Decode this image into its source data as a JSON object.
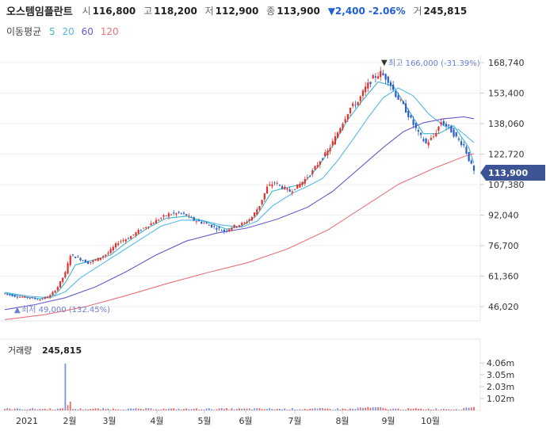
{
  "header": {
    "name": "오스템임플란트",
    "open_label": "시",
    "open": "116,800",
    "high_label": "고",
    "high": "118,200",
    "low_label": "저",
    "low": "112,900",
    "close_label": "종",
    "close": "113,900",
    "change": "▼2,400 -2.06%",
    "volume_label": "거",
    "volume": "245,815"
  },
  "ma_legend": {
    "title": "이동평균",
    "periods": [
      {
        "label": "5",
        "color": "#3ab7c9"
      },
      {
        "label": "20",
        "color": "#55b8ea"
      },
      {
        "label": "60",
        "color": "#6a5acd"
      },
      {
        "label": "120",
        "color": "#e8737a"
      }
    ]
  },
  "scale_type": "Linear",
  "chart_data": {
    "type": "candlestick",
    "y_ticks": [
      "168,740",
      "153,400",
      "138,060",
      "122,720",
      "107,380",
      "92,040",
      "76,700",
      "61,360",
      "46,020"
    ],
    "y_tick_values": [
      168740,
      153400,
      138060,
      122720,
      107380,
      92040,
      76700,
      61360,
      46020
    ],
    "x_ticks": [
      "2021",
      "2월",
      "3월",
      "4월",
      "5월",
      "6월",
      "7월",
      "8월",
      "9월",
      "10월"
    ],
    "current_price": "113,900",
    "high_annotation": "최고 166,000 (-31.39%)",
    "low_annotation": "최저 49,000 (132.45%)",
    "price_path": [
      [
        0,
        52500
      ],
      [
        5,
        51000
      ],
      [
        10,
        50500
      ],
      [
        14,
        49500
      ],
      [
        18,
        51500
      ],
      [
        21,
        56000
      ],
      [
        24,
        63000
      ],
      [
        26,
        72000
      ],
      [
        29,
        70500
      ],
      [
        33,
        68000
      ],
      [
        37,
        70000
      ],
      [
        41,
        73000
      ],
      [
        45,
        78500
      ],
      [
        49,
        80500
      ],
      [
        53,
        84000
      ],
      [
        57,
        87000
      ],
      [
        61,
        90000
      ],
      [
        65,
        92500
      ],
      [
        69,
        93000
      ],
      [
        72,
        92000
      ],
      [
        75,
        89500
      ],
      [
        79,
        88000
      ],
      [
        83,
        86000
      ],
      [
        87,
        84000
      ],
      [
        91,
        86500
      ],
      [
        95,
        88000
      ],
      [
        98,
        91000
      ],
      [
        101,
        97000
      ],
      [
        104,
        106000
      ],
      [
        107,
        108500
      ],
      [
        110,
        106000
      ],
      [
        113,
        104000
      ],
      [
        116,
        106500
      ],
      [
        119,
        110000
      ],
      [
        122,
        114000
      ],
      [
        125,
        119500
      ],
      [
        128,
        124000
      ],
      [
        131,
        131000
      ],
      [
        134,
        139000
      ],
      [
        137,
        146000
      ],
      [
        140,
        149000
      ],
      [
        143,
        156000
      ],
      [
        146,
        161000
      ],
      [
        149,
        163500
      ],
      [
        152,
        160000
      ],
      [
        155,
        152500
      ],
      [
        158,
        147000
      ],
      [
        161,
        140000
      ],
      [
        164,
        133000
      ],
      [
        167,
        128000
      ],
      [
        170,
        131500
      ],
      [
        173,
        139000
      ],
      [
        176,
        136000
      ],
      [
        179,
        131000
      ],
      [
        182,
        127000
      ],
      [
        184,
        120000
      ],
      [
        186,
        113900
      ]
    ],
    "moving_averages": [
      {
        "name": "5",
        "color": "#3ab7c9",
        "path": [
          [
            0,
            52800
          ],
          [
            8,
            51000
          ],
          [
            14,
            50000
          ],
          [
            20,
            52000
          ],
          [
            24,
            58000
          ],
          [
            28,
            67000
          ],
          [
            34,
            69000
          ],
          [
            42,
            72000
          ],
          [
            48,
            78000
          ],
          [
            56,
            85000
          ],
          [
            64,
            90500
          ],
          [
            72,
            91500
          ],
          [
            80,
            88500
          ],
          [
            88,
            85000
          ],
          [
            94,
            86500
          ],
          [
            100,
            92000
          ],
          [
            106,
            104000
          ],
          [
            112,
            106000
          ],
          [
            118,
            107500
          ],
          [
            124,
            116000
          ],
          [
            130,
            127000
          ],
          [
            136,
            140000
          ],
          [
            142,
            150000
          ],
          [
            148,
            159000
          ],
          [
            154,
            157000
          ],
          [
            160,
            145000
          ],
          [
            166,
            133000
          ],
          [
            172,
            133000
          ],
          [
            178,
            137000
          ],
          [
            184,
            126000
          ],
          [
            186,
            118000
          ]
        ]
      },
      {
        "name": "20",
        "color": "#55b8ea",
        "path": [
          [
            0,
            53200
          ],
          [
            10,
            51200
          ],
          [
            18,
            50500
          ],
          [
            24,
            53500
          ],
          [
            30,
            60500
          ],
          [
            38,
            67000
          ],
          [
            46,
            73500
          ],
          [
            54,
            80000
          ],
          [
            62,
            86500
          ],
          [
            70,
            89500
          ],
          [
            78,
            89500
          ],
          [
            86,
            87000
          ],
          [
            94,
            86000
          ],
          [
            100,
            89000
          ],
          [
            106,
            96500
          ],
          [
            114,
            103000
          ],
          [
            120,
            106500
          ],
          [
            126,
            110500
          ],
          [
            132,
            119500
          ],
          [
            138,
            130000
          ],
          [
            144,
            141000
          ],
          [
            150,
            151000
          ],
          [
            156,
            156000
          ],
          [
            162,
            152000
          ],
          [
            168,
            143000
          ],
          [
            174,
            137000
          ],
          [
            180,
            135000
          ],
          [
            186,
            128500
          ]
        ]
      },
      {
        "name": "60",
        "color": "#6a5acd",
        "path": [
          [
            0,
            44500
          ],
          [
            12,
            47000
          ],
          [
            24,
            50500
          ],
          [
            36,
            56000
          ],
          [
            48,
            63500
          ],
          [
            60,
            72000
          ],
          [
            72,
            79000
          ],
          [
            84,
            83000
          ],
          [
            96,
            85500
          ],
          [
            108,
            90000
          ],
          [
            120,
            96000
          ],
          [
            130,
            104000
          ],
          [
            140,
            115000
          ],
          [
            150,
            126000
          ],
          [
            158,
            134000
          ],
          [
            166,
            138500
          ],
          [
            174,
            140500
          ],
          [
            182,
            141500
          ],
          [
            186,
            140500
          ]
        ]
      },
      {
        "name": "120",
        "color": "#e8737a",
        "path": [
          [
            0,
            39500
          ],
          [
            16,
            42000
          ],
          [
            32,
            46000
          ],
          [
            48,
            51500
          ],
          [
            64,
            57500
          ],
          [
            80,
            63000
          ],
          [
            96,
            68000
          ],
          [
            112,
            75000
          ],
          [
            128,
            84500
          ],
          [
            142,
            96000
          ],
          [
            156,
            107500
          ],
          [
            170,
            115500
          ],
          [
            182,
            121500
          ],
          [
            186,
            123000
          ]
        ]
      }
    ],
    "volume": {
      "title": "거래량",
      "value": "245,815",
      "y_ticks": [
        "4.06m",
        "3.05m",
        "2.03m",
        "1.02m"
      ],
      "y_tick_values": [
        4.06,
        3.05,
        2.03,
        1.02
      ]
    }
  }
}
